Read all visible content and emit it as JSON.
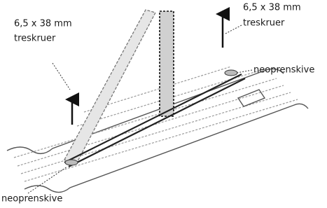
{
  "labels": [
    {
      "lines": [
        "6,5 x 38 mm",
        "treskruer"
      ]
    },
    {
      "lines": [
        "6,5 x 38 mm",
        "treskruer"
      ]
    },
    {
      "lines": [
        "neoprenskive"
      ]
    },
    {
      "lines": [
        "neoprenskive"
      ]
    }
  ]
}
